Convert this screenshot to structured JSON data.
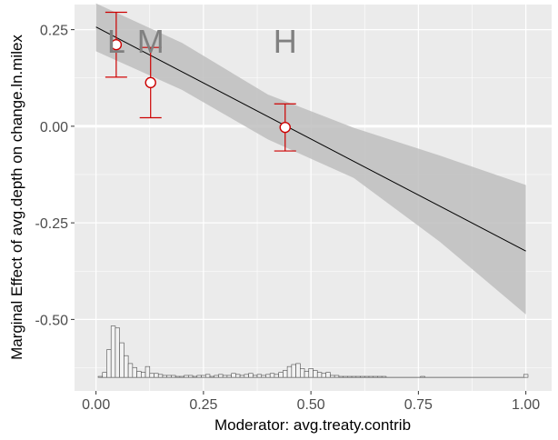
{
  "chart_data": {
    "type": "line",
    "title": "",
    "xlabel": "Moderator: avg.treaty.contrib",
    "ylabel": "Marginal Effect of avg.depth on change.ln.milex",
    "xlim": [
      -0.05,
      1.06
    ],
    "ylim": [
      -0.685,
      0.315
    ],
    "x_ticks": [
      "0.00",
      "0.25",
      "0.50",
      "0.75",
      "1.00"
    ],
    "y_ticks": [
      "0.25",
      "0.00",
      "-0.25",
      "-0.50"
    ],
    "grid": true,
    "background": "#ebebeb",
    "effect_line": {
      "x": [
        0,
        1
      ],
      "y": [
        0.257,
        -0.323
      ]
    },
    "confidence_band": {
      "x": [
        0,
        0.2,
        0.4,
        0.6,
        0.8,
        1
      ],
      "upper": [
        0.318,
        0.216,
        0.082,
        -0.004,
        -0.076,
        -0.152
      ],
      "lower": [
        0.194,
        0.094,
        -0.034,
        -0.134,
        -0.299,
        -0.487
      ]
    },
    "bin_estimates": [
      {
        "label": "L",
        "x": 0.047,
        "y": 0.211,
        "lower": 0.127,
        "upper": 0.295
      },
      {
        "label": "M",
        "x": 0.127,
        "y": 0.113,
        "lower": 0.022,
        "upper": 0.204
      },
      {
        "label": "H",
        "x": 0.44,
        "y": -0.003,
        "lower": -0.064,
        "upper": 0.058
      }
    ],
    "bin_colors": {
      "point_fill": "#ffffff",
      "point_stroke": "#cc0000",
      "errorbar": "#cc0000",
      "label": "#808080"
    },
    "histogram": {
      "baseline": -0.65,
      "bin_width": 0.01,
      "start": 0.01,
      "counts": [
        1,
        5,
        28,
        52,
        50,
        35,
        22,
        14,
        10,
        6,
        5,
        11,
        4,
        4,
        3,
        2,
        2,
        2,
        1,
        1,
        2,
        2,
        1,
        2,
        2,
        3,
        1,
        2,
        3,
        2,
        2,
        4,
        3,
        2,
        3,
        4,
        2,
        3,
        2,
        3,
        4,
        3,
        5,
        7,
        11,
        13,
        14,
        9,
        6,
        9,
        7,
        5,
        4,
        5,
        2,
        2,
        1,
        1,
        1,
        1,
        1,
        1,
        1,
        1,
        1,
        1,
        1,
        0,
        0,
        0,
        0,
        0,
        0,
        0,
        0,
        1,
        0,
        0,
        0,
        0,
        0,
        0,
        0,
        0,
        0,
        0,
        0,
        0,
        0,
        0,
        0,
        0,
        0,
        0,
        0,
        0,
        0,
        0,
        0,
        3
      ],
      "max_height": 0.133
    }
  }
}
